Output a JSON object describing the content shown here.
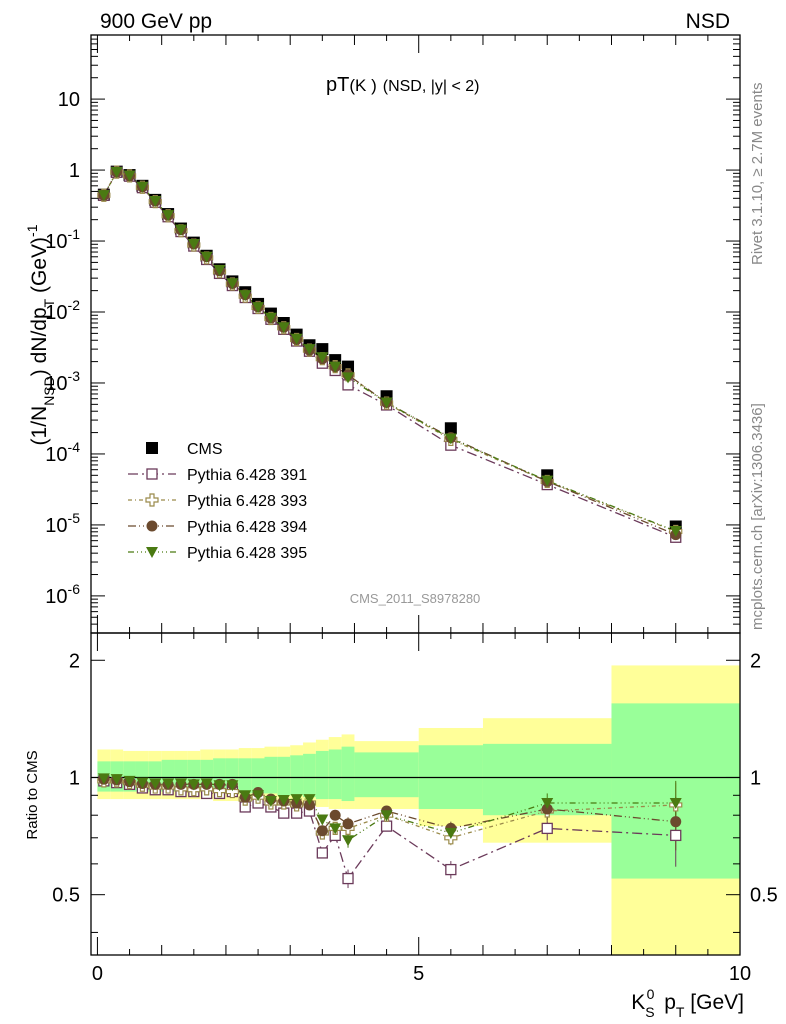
{
  "header": {
    "left": "900 GeV pp",
    "right": "NSD"
  },
  "side_texts": {
    "rivet": "Rivet 3.1.10, ≥ 2.7M events",
    "mcplots": "mcplots.cern.ch [arXiv:1306.3436]"
  },
  "colors": {
    "cms": "#000000",
    "p391": "#6b3a5a",
    "p393": "#9a8a4a",
    "p394": "#6b4a2e",
    "p395": "#4a7a12",
    "band_yellow": "#ffff99",
    "band_green": "#99ff99"
  },
  "chart_data": [
    {
      "type": "scatter",
      "title_main": "pT",
      "title_particle": "(K )",
      "title_cut": "(NSD, |y| < 2)",
      "ylabel": "(1/N NSD) dN/dp T (GeV)^-1",
      "yscale": "log",
      "ylim": [
        3e-07,
        80
      ],
      "xlim": [
        -0.1,
        10.0
      ],
      "y_tick_labels": [
        "10",
        "1",
        "10^-1",
        "10^-2",
        "10^-3",
        "10^-4",
        "10^-5",
        "10^-6"
      ],
      "watermark": "CMS_2011_S8978280",
      "x": [
        0.1,
        0.3,
        0.5,
        0.7,
        0.9,
        1.1,
        1.3,
        1.5,
        1.7,
        1.9,
        2.1,
        2.3,
        2.5,
        2.7,
        2.9,
        3.1,
        3.3,
        3.5,
        3.7,
        3.9,
        4.5,
        5.5,
        7.0,
        9.0
      ],
      "series": [
        {
          "name": "CMS",
          "key": "cms",
          "marker": "filled-square",
          "values": [
            0.45,
            0.95,
            0.85,
            0.6,
            0.38,
            0.24,
            0.15,
            0.095,
            0.062,
            0.04,
            0.027,
            0.019,
            0.013,
            0.0095,
            0.007,
            0.0048,
            0.0034,
            0.003,
            0.0021,
            0.0017,
            0.00065,
            0.00023,
            5e-05,
            9.5e-06
          ]
        },
        {
          "name": "Pythia 6.428 391",
          "key": "p391",
          "marker": "open-square",
          "values": [
            0.44,
            0.93,
            0.82,
            0.565,
            0.352,
            0.22,
            0.136,
            0.085,
            0.055,
            0.035,
            0.0236,
            0.016,
            0.0112,
            0.0079,
            0.0057,
            0.0039,
            0.0028,
            0.0019,
            0.0015,
            0.00094,
            0.00049,
            0.000133,
            3.7e-05,
            6.7e-06
          ]
        },
        {
          "name": "Pythia 6.428 393",
          "key": "p393",
          "marker": "open-cross",
          "values": [
            0.442,
            0.935,
            0.828,
            0.573,
            0.359,
            0.227,
            0.14,
            0.088,
            0.058,
            0.037,
            0.0248,
            0.0167,
            0.0116,
            0.0081,
            0.006,
            0.0041,
            0.0029,
            0.0022,
            0.0017,
            0.0013,
            0.00052,
            0.00016,
            4.1e-05,
            8.1e-06
          ]
        },
        {
          "name": "Pythia 6.428 394",
          "key": "p394",
          "marker": "filled-circle",
          "values": [
            0.442,
            0.94,
            0.83,
            0.58,
            0.365,
            0.231,
            0.144,
            0.091,
            0.06,
            0.038,
            0.0252,
            0.0175,
            0.0118,
            0.0082,
            0.0061,
            0.0041,
            0.0029,
            0.0022,
            0.0017,
            0.0013,
            0.00053,
            0.00017,
            4.1e-05,
            7.3e-06
          ]
        },
        {
          "name": "Pythia 6.428 395",
          "key": "p395",
          "marker": "filled-triangle-down",
          "values": [
            0.443,
            0.94,
            0.835,
            0.582,
            0.366,
            0.232,
            0.145,
            0.091,
            0.06,
            0.039,
            0.0254,
            0.0173,
            0.0117,
            0.0083,
            0.0061,
            0.0042,
            0.003,
            0.0023,
            0.0017,
            0.0012,
            0.00053,
            0.000165,
            4.2e-05,
            8.2e-06
          ]
        }
      ]
    },
    {
      "type": "scatter",
      "ylabel": "Ratio to CMS",
      "yscale": "log",
      "ylim": [
        0.35,
        2.35
      ],
      "xlim": [
        -0.1,
        10.0
      ],
      "xlabel": "K S 0 p T [GeV]",
      "x_ticks": [
        0,
        5,
        10
      ],
      "y_ticks": [
        0.5,
        1,
        2
      ],
      "bands": {
        "edges": [
          0,
          0.2,
          0.4,
          0.6,
          0.8,
          1.0,
          1.2,
          1.4,
          1.6,
          1.8,
          2.0,
          2.2,
          2.4,
          2.6,
          2.8,
          3.0,
          3.2,
          3.4,
          3.6,
          3.8,
          4.0,
          5.0,
          6.0,
          8.0,
          10.0
        ],
        "yellow_up": [
          1.18,
          1.18,
          1.17,
          1.17,
          1.17,
          1.17,
          1.17,
          1.17,
          1.18,
          1.18,
          1.18,
          1.19,
          1.19,
          1.2,
          1.2,
          1.21,
          1.23,
          1.25,
          1.27,
          1.29,
          1.24,
          1.34,
          1.42,
          1.94
        ],
        "yellow_down": [
          0.88,
          0.88,
          0.88,
          0.88,
          0.88,
          0.88,
          0.88,
          0.88,
          0.88,
          0.87,
          0.87,
          0.87,
          0.87,
          0.86,
          0.86,
          0.85,
          0.85,
          0.84,
          0.83,
          0.83,
          0.83,
          0.75,
          0.68,
          0.35
        ],
        "green_up": [
          1.1,
          1.1,
          1.1,
          1.1,
          1.1,
          1.11,
          1.11,
          1.11,
          1.11,
          1.12,
          1.12,
          1.12,
          1.12,
          1.13,
          1.13,
          1.14,
          1.15,
          1.17,
          1.18,
          1.2,
          1.16,
          1.21,
          1.22,
          1.55
        ],
        "green_down": [
          0.92,
          0.92,
          0.92,
          0.92,
          0.92,
          0.92,
          0.92,
          0.92,
          0.92,
          0.92,
          0.92,
          0.91,
          0.91,
          0.91,
          0.9,
          0.9,
          0.89,
          0.88,
          0.88,
          0.87,
          0.89,
          0.83,
          0.8,
          0.55
        ]
      },
      "series": [
        {
          "name": "Pythia 6.428 391",
          "key": "p391",
          "marker": "open-square",
          "values": [
            0.98,
            0.97,
            0.96,
            0.94,
            0.93,
            0.93,
            0.92,
            0.92,
            0.91,
            0.91,
            0.92,
            0.84,
            0.86,
            0.84,
            0.81,
            0.81,
            0.82,
            0.64,
            0.71,
            0.55,
            0.75,
            0.58,
            0.74,
            0.71
          ],
          "err": [
            0.01,
            0.01,
            0.01,
            0.01,
            0.01,
            0.01,
            0.01,
            0.01,
            0.01,
            0.01,
            0.01,
            0.01,
            0.01,
            0.01,
            0.01,
            0.01,
            0.01,
            0.02,
            0.02,
            0.03,
            0.02,
            0.03,
            0.05,
            0.12
          ]
        },
        {
          "name": "Pythia 6.428 393",
          "key": "p393",
          "marker": "open-cross",
          "values": [
            0.98,
            0.98,
            0.97,
            0.955,
            0.945,
            0.945,
            0.935,
            0.93,
            0.935,
            0.925,
            0.92,
            0.88,
            0.89,
            0.86,
            0.86,
            0.85,
            0.86,
            0.72,
            0.74,
            0.74,
            0.8,
            0.7,
            0.82,
            0.85
          ],
          "err": [
            0.01,
            0.01,
            0.01,
            0.01,
            0.01,
            0.01,
            0.01,
            0.01,
            0.01,
            0.01,
            0.01,
            0.01,
            0.01,
            0.01,
            0.01,
            0.01,
            0.01,
            0.02,
            0.02,
            0.03,
            0.02,
            0.03,
            0.05,
            0.12
          ]
        },
        {
          "name": "Pythia 6.428 394",
          "key": "p394",
          "marker": "filled-circle",
          "values": [
            0.99,
            0.985,
            0.975,
            0.965,
            0.96,
            0.96,
            0.96,
            0.96,
            0.96,
            0.96,
            0.96,
            0.89,
            0.915,
            0.88,
            0.87,
            0.86,
            0.85,
            0.73,
            0.8,
            0.76,
            0.82,
            0.74,
            0.83,
            0.77
          ],
          "err": [
            0.01,
            0.01,
            0.01,
            0.01,
            0.01,
            0.01,
            0.01,
            0.01,
            0.01,
            0.01,
            0.01,
            0.01,
            0.01,
            0.01,
            0.01,
            0.01,
            0.01,
            0.02,
            0.02,
            0.03,
            0.02,
            0.03,
            0.05,
            0.12
          ]
        },
        {
          "name": "Pythia 6.428 395",
          "key": "p395",
          "marker": "filled-triangle-down",
          "values": [
            0.995,
            0.99,
            0.98,
            0.97,
            0.965,
            0.965,
            0.965,
            0.96,
            0.965,
            0.955,
            0.955,
            0.9,
            0.9,
            0.87,
            0.875,
            0.88,
            0.88,
            0.78,
            0.74,
            0.69,
            0.8,
            0.72,
            0.86,
            0.86
          ],
          "err": [
            0.01,
            0.01,
            0.01,
            0.01,
            0.01,
            0.01,
            0.01,
            0.01,
            0.01,
            0.01,
            0.01,
            0.01,
            0.01,
            0.01,
            0.01,
            0.01,
            0.01,
            0.02,
            0.02,
            0.03,
            0.02,
            0.03,
            0.05,
            0.12
          ]
        }
      ]
    }
  ]
}
